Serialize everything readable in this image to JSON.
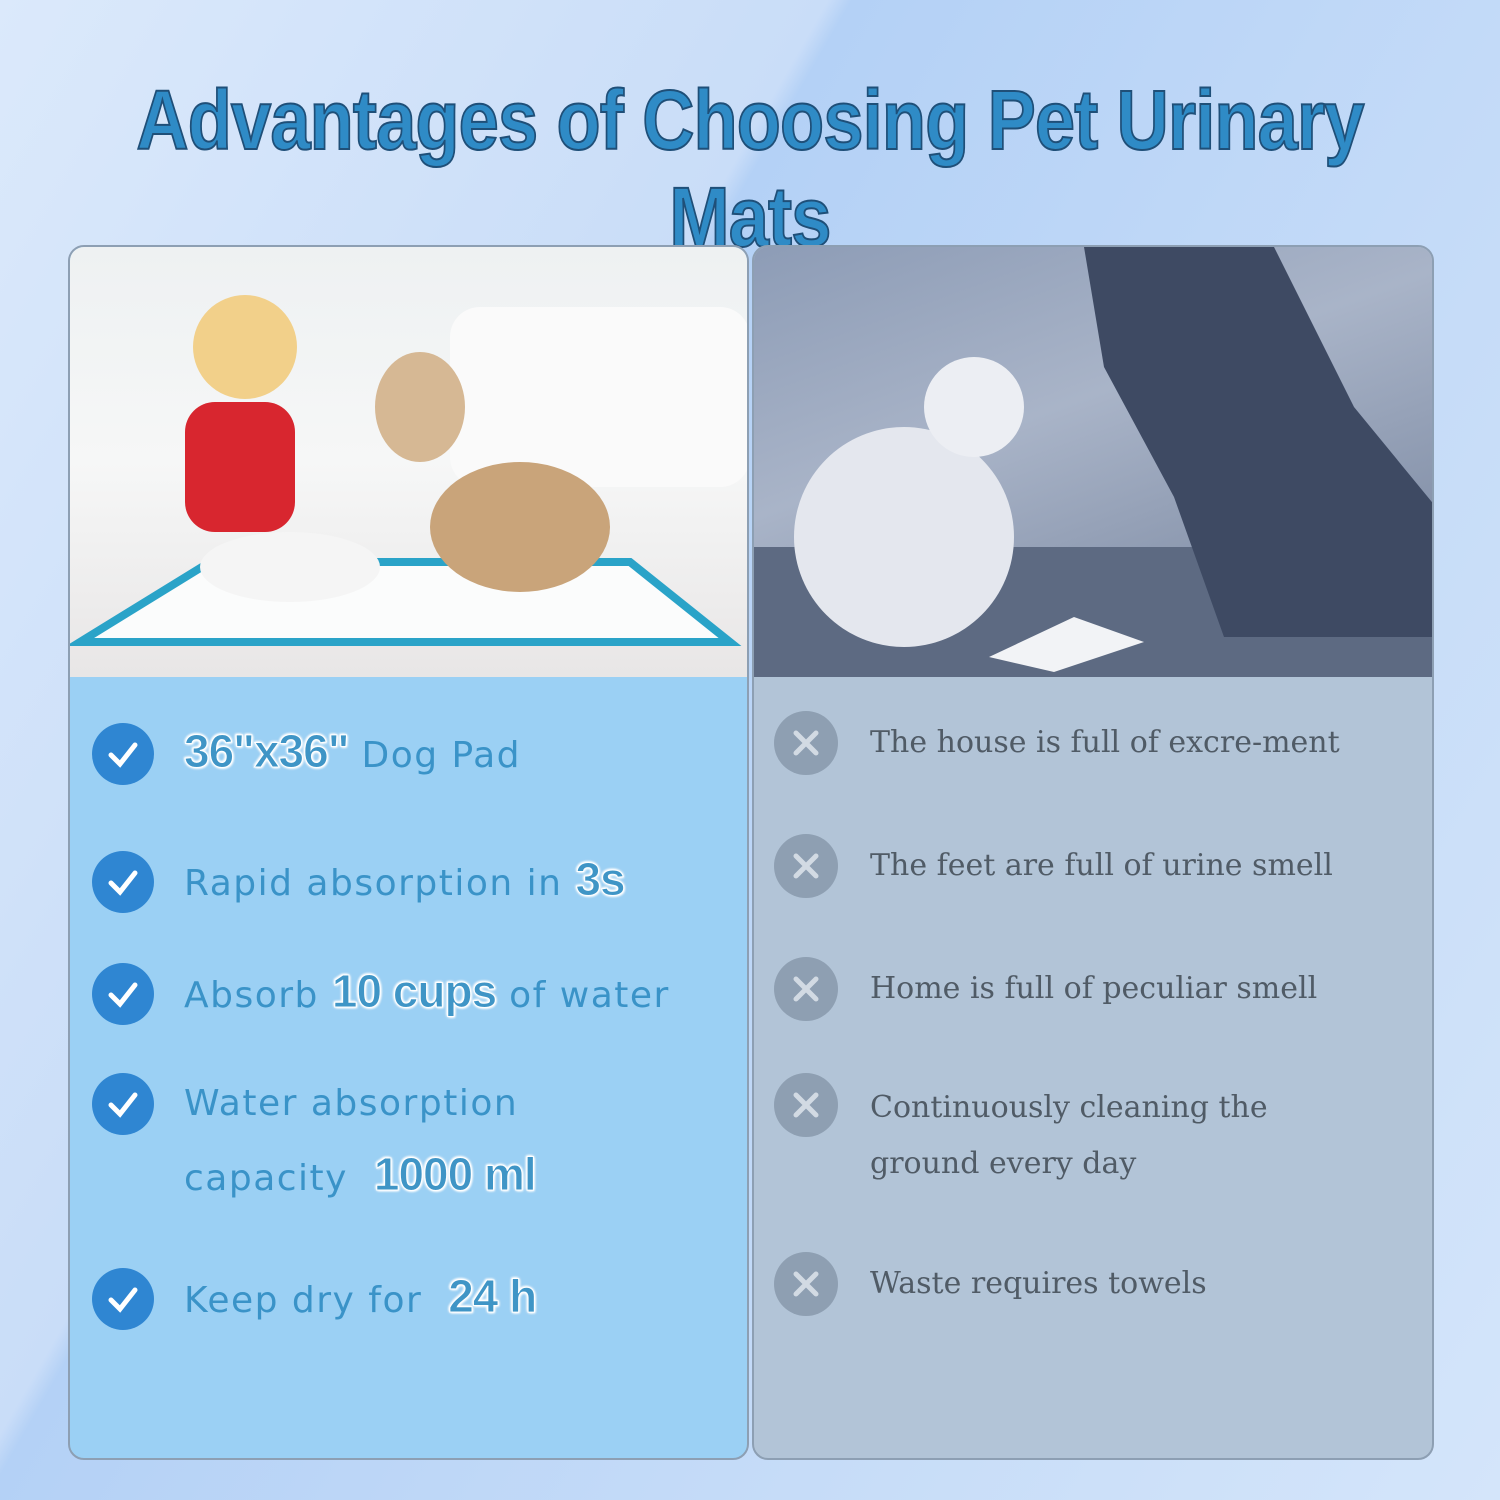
{
  "title": "Advantages of Choosing Pet Urinary Mats",
  "advantages": [
    {
      "highlight": "36\"x36\"",
      "text_after": " Dog Pad"
    },
    {
      "text_before": "Rapid absorption in ",
      "highlight": "3s"
    },
    {
      "text_before": "Absorb ",
      "highlight": "10 cups",
      "text_after": " of water"
    },
    {
      "line1": "Water absorption",
      "text_before": "capacity  ",
      "highlight": "1000 ml"
    },
    {
      "text_before": "Keep dry for  ",
      "highlight": "24 h"
    }
  ],
  "disadvantages": [
    "The house is full of excre-ment",
    "The feet are full of urine smell",
    "Home is full of peculiar smell",
    {
      "line1": "Continuously cleaning the",
      "line2": "ground every day"
    },
    "Waste requires towels"
  ],
  "colors": {
    "title": "#2f8bc6",
    "check": "#2f86d2",
    "cross": "#8e9fb2",
    "left_panel": "#9bd0f4",
    "right_panel": "#b2c4d7"
  },
  "icons": {
    "advantage": "check-circle-icon",
    "disadvantage": "x-circle-icon"
  }
}
